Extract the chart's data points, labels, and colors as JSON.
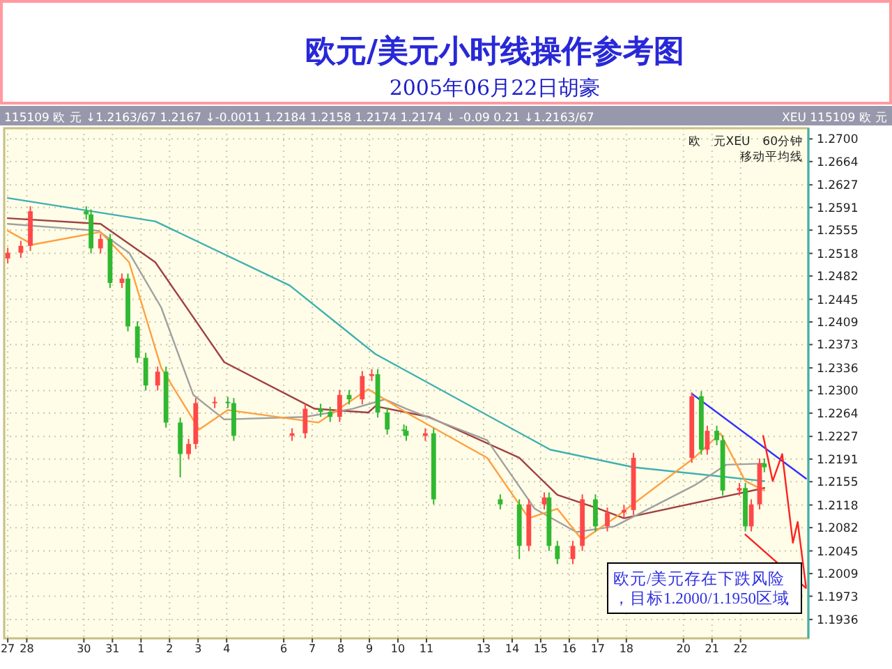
{
  "chart_data": {
    "type": "candlestick",
    "title": "欧元/美元小时线操作参考图",
    "subtitle": "2005年06月22日胡豪",
    "annotations": [
      "115109 欧 元 ↓1.2163/67 1.2167 ↓-0.0011 1.2184 1.2158 1.2174 1.2174 ↓ -0.09 0.21 ↓1.2163/67",
      "XEU 115109 欧 元",
      "欧　元XEU　60分钟",
      "移动平均线",
      "欧元/美元存在下跌风险，目标1.2000/1.1950区域"
    ],
    "x": [
      "2005-05-27T08:00",
      "2005-05-27T19:00",
      "2005-05-28T03:00",
      "2005-05-30T02:00",
      "2005-05-30T06:00",
      "2005-05-30T14:00",
      "2005-05-30T22:00",
      "2005-05-31T08:00",
      "2005-05-31T13:00",
      "2005-05-31T21:00",
      "2005-06-01T04:00",
      "2005-06-01T14:00",
      "2005-06-01T21:00",
      "2005-06-02T09:00",
      "2005-06-02T16:00",
      "2005-06-02T22:00",
      "2005-06-03T14:00",
      "2005-06-04T01:00",
      "2005-06-04T06:00",
      "2005-06-06T07:00",
      "2005-06-06T18:00",
      "2005-06-07T07:00",
      "2005-06-07T15:00",
      "2005-06-07T23:00",
      "2005-06-08T07:00",
      "2005-06-08T18:00",
      "2005-06-09T02:00",
      "2005-06-09T07:00",
      "2005-06-09T15:00",
      "2005-06-10T05:00",
      "2005-06-10T07:00",
      "2005-06-10T23:00",
      "2005-06-11T06:00",
      "2005-06-13T14:00",
      "2005-06-14T06:00",
      "2005-06-14T14:00",
      "2005-06-15T03:00",
      "2005-06-15T07:00",
      "2005-06-15T14:00",
      "2005-06-16T03:00",
      "2005-06-16T11:00",
      "2005-06-16T22:00",
      "2005-06-17T08:00",
      "2005-06-17T22:00",
      "2005-06-18T06:00",
      "2005-06-20T07:00",
      "2005-06-20T15:00",
      "2005-06-20T20:00",
      "2005-06-21T04:00",
      "2005-06-21T09:00",
      "2005-06-21T23:00",
      "2005-06-22T04:00",
      "2005-06-22T09:00",
      "2005-06-22T16:00",
      "2005-06-22T20:00"
    ],
    "ohlc": [
      [
        1.251,
        1.2527,
        1.2502,
        1.2519
      ],
      [
        1.2519,
        1.2538,
        1.2511,
        1.253
      ],
      [
        1.253,
        1.2593,
        1.2522,
        1.2585
      ],
      [
        1.2585,
        1.2593,
        1.2572,
        1.258
      ],
      [
        1.258,
        1.2588,
        1.2518,
        1.2526
      ],
      [
        1.2526,
        1.2549,
        1.2518,
        1.2541
      ],
      [
        1.2541,
        1.2549,
        1.2463,
        1.2471
      ],
      [
        1.2471,
        1.2486,
        1.2463,
        1.2478
      ],
      [
        1.2478,
        1.2486,
        1.2394,
        1.2402
      ],
      [
        1.2402,
        1.241,
        1.2344,
        1.2352
      ],
      [
        1.2352,
        1.236,
        1.23,
        1.2308
      ],
      [
        1.2308,
        1.2338,
        1.23,
        1.233
      ],
      [
        1.233,
        1.2338,
        1.2241,
        1.2249
      ],
      [
        1.2249,
        1.2257,
        1.2162,
        1.2199
      ],
      [
        1.2199,
        1.2223,
        1.2191,
        1.2215
      ],
      [
        1.2215,
        1.2288,
        1.2207,
        1.228
      ],
      [
        1.228,
        1.229,
        1.2272,
        1.2282
      ],
      [
        1.2282,
        1.229,
        1.2272,
        1.228
      ],
      [
        1.228,
        1.2288,
        1.222,
        1.2228
      ],
      [
        1.2228,
        1.224,
        1.222,
        1.2232
      ],
      [
        1.2232,
        1.2279,
        1.2224,
        1.2271
      ],
      [
        1.2271,
        1.2279,
        1.2258,
        1.2266
      ],
      [
        1.2266,
        1.2274,
        1.225,
        1.2258
      ],
      [
        1.2258,
        1.2301,
        1.225,
        1.2293
      ],
      [
        1.2293,
        1.2301,
        1.2278,
        1.2286
      ],
      [
        1.2286,
        1.2331,
        1.2278,
        1.2323
      ],
      [
        1.2323,
        1.2334,
        1.2315,
        1.2326
      ],
      [
        1.2326,
        1.2334,
        1.2257,
        1.2265
      ],
      [
        1.2265,
        1.2273,
        1.223,
        1.2238
      ],
      [
        1.2238,
        1.2246,
        1.2228,
        1.2236
      ],
      [
        1.2236,
        1.2244,
        1.222,
        1.2228
      ],
      [
        1.2228,
        1.224,
        1.222,
        1.2232
      ],
      [
        1.2232,
        1.224,
        1.2119,
        1.2127
      ],
      [
        1.2127,
        1.2135,
        1.2111,
        1.2119
      ],
      [
        1.2119,
        1.2127,
        1.2032,
        1.2053
      ],
      [
        1.2053,
        1.2127,
        1.2045,
        1.2119
      ],
      [
        1.2119,
        1.2138,
        1.2111,
        1.213
      ],
      [
        1.213,
        1.2138,
        1.2045,
        1.2053
      ],
      [
        1.2053,
        1.2061,
        1.2024,
        1.2032
      ],
      [
        1.2032,
        1.2061,
        1.2024,
        1.2053
      ],
      [
        1.2053,
        1.2135,
        1.2045,
        1.2127
      ],
      [
        1.2127,
        1.2135,
        1.2076,
        1.2084
      ],
      [
        1.2084,
        1.2114,
        1.2076,
        1.2106
      ],
      [
        1.2106,
        1.2118,
        1.2098,
        1.211
      ],
      [
        1.211,
        1.2201,
        1.2102,
        1.2193
      ],
      [
        1.2193,
        1.2297,
        1.2185,
        1.2291
      ],
      [
        1.2291,
        1.2299,
        1.2198,
        1.2206
      ],
      [
        1.2206,
        1.2244,
        1.2198,
        1.2236
      ],
      [
        1.2236,
        1.2244,
        1.2213,
        1.2221
      ],
      [
        1.2221,
        1.2229,
        1.2133,
        1.2141
      ],
      [
        1.2141,
        1.2153,
        1.2133,
        1.2145
      ],
      [
        1.2145,
        1.2153,
        1.2076,
        1.2084
      ],
      [
        1.2084,
        1.2127,
        1.2076,
        1.2119
      ],
      [
        1.2119,
        1.2192,
        1.2111,
        1.2184
      ],
      [
        1.2184,
        1.2192,
        1.217,
        1.2178
      ]
    ],
    "series": [
      {
        "type": "line",
        "color": "#40b0b0",
        "x": [
          "2005-05-27T08:00",
          "2005-06-01T12:00",
          "2005-06-06T05:00",
          "2005-06-09T05:00",
          "2005-06-15T08:00",
          "2005-06-18T06:00",
          "2005-06-22T20:00"
        ],
        "values": [
          1.2606,
          1.2569,
          1.2467,
          1.2358,
          1.2206,
          1.2178,
          1.2156
        ]
      },
      {
        "type": "line",
        "color": "#a04040",
        "x": [
          "2005-05-27T08:00",
          "2005-05-30T14:00",
          "2005-06-01T12:00",
          "2005-06-03T22:00",
          "2005-06-07T02:00",
          "2005-06-08T23:00",
          "2005-06-09T05:00",
          "2005-06-11T02:00",
          "2005-06-14T06:00",
          "2005-06-15T14:00",
          "2005-06-17T01:00",
          "2005-06-17T22:00",
          "2005-06-21T07:00",
          "2005-06-22T20:00"
        ],
        "values": [
          1.2574,
          1.2565,
          1.2504,
          1.2345,
          1.2271,
          1.2265,
          1.2275,
          1.2258,
          1.2193,
          1.2134,
          1.2112,
          1.2097,
          1.213,
          1.2145
        ]
      },
      {
        "type": "line",
        "color": "#a0a0a0",
        "x": [
          "2005-05-27T08:00",
          "2005-05-30T12:00",
          "2005-05-31T14:00",
          "2005-06-01T17:00",
          "2005-06-02T20:00",
          "2005-06-03T22:00",
          "2005-06-06T18:00",
          "2005-06-08T10:00",
          "2005-06-09T13:00",
          "2005-06-10T07:00",
          "2005-06-13T03:00",
          "2005-06-14T19:00",
          "2005-06-16T06:00",
          "2005-06-17T14:00",
          "2005-06-20T09:00",
          "2005-06-21T12:00",
          "2005-06-22T20:00"
        ],
        "values": [
          1.2565,
          1.2554,
          1.2519,
          1.2432,
          1.2293,
          1.2254,
          1.2258,
          1.2271,
          1.2286,
          1.2271,
          1.2221,
          1.2112,
          1.2075,
          1.2084,
          1.2149,
          1.2182,
          1.2184
        ]
      },
      {
        "type": "line",
        "color": "#ffa040",
        "x": [
          "2005-05-27T08:00",
          "2005-05-28T05:00",
          "2005-05-30T14:00",
          "2005-05-31T14:00",
          "2005-06-01T17:00",
          "2005-06-03T01:00",
          "2005-06-04T01:00",
          "2005-06-07T05:00",
          "2005-06-08T23:00",
          "2005-06-10T07:00",
          "2005-06-13T03:00",
          "2005-06-14T14:00",
          "2005-06-15T14:00",
          "2005-06-16T11:00",
          "2005-06-17T14:00",
          "2005-06-20T09:00",
          "2005-06-21T07:00",
          "2005-06-22T04:00",
          "2005-06-22T20:00"
        ],
        "values": [
          1.2554,
          1.2532,
          1.2552,
          1.2504,
          1.2336,
          1.2238,
          1.2269,
          1.2249,
          1.2302,
          1.2265,
          1.2193,
          1.2097,
          1.2112,
          1.2062,
          1.2097,
          1.2193,
          1.2232,
          1.2156,
          1.2141
        ]
      },
      {
        "type": "line",
        "color": "#3030ff",
        "x": [
          "2005-06-20T07:00",
          "2005-06-24T07:00"
        ],
        "values": [
          1.2295,
          1.216
        ]
      },
      {
        "type": "line",
        "color": "#ff2020",
        "x": [
          "2005-06-22T04:00",
          "2005-06-24T07:00"
        ],
        "values": [
          1.2071,
          1.1986
        ]
      },
      {
        "type": "line",
        "color": "#ff2020",
        "x": [
          "2005-06-22T19:00",
          "2005-06-23T03:00",
          "2005-06-23T11:00",
          "2005-06-23T20:00",
          "2005-06-24T00:00",
          "2005-06-24T07:00"
        ],
        "values": [
          1.2228,
          1.2156,
          1.2199,
          1.2058,
          1.2091,
          1.1988
        ]
      }
    ],
    "xlim": [
      "2005-05-27T05:00",
      "2005-06-24T09:00"
    ],
    "ylim": [
      1.1906,
      1.2717
    ],
    "xticks": [
      {
        "value": "2005-05-27T08:00",
        "label": "27"
      },
      {
        "value": "2005-05-28",
        "label": "28"
      },
      {
        "value": "2005-05-30",
        "label": "30"
      },
      {
        "value": "2005-05-31",
        "label": "31"
      },
      {
        "value": "2005-06-01",
        "label": "1"
      },
      {
        "value": "2005-06-02",
        "label": "2"
      },
      {
        "value": "2005-06-03",
        "label": "3"
      },
      {
        "value": "2005-06-04",
        "label": "4"
      },
      {
        "value": "2005-06-06",
        "label": "6"
      },
      {
        "value": "2005-06-07",
        "label": "7"
      },
      {
        "value": "2005-06-08",
        "label": "8"
      },
      {
        "value": "2005-06-09",
        "label": "9"
      },
      {
        "value": "2005-06-10",
        "label": "10"
      },
      {
        "value": "2005-06-11",
        "label": "11"
      },
      {
        "value": "2005-06-13",
        "label": "13"
      },
      {
        "value": "2005-06-14",
        "label": "14"
      },
      {
        "value": "2005-06-15",
        "label": "15"
      },
      {
        "value": "2005-06-16",
        "label": "16"
      },
      {
        "value": "2005-06-17",
        "label": "17"
      },
      {
        "value": "2005-06-18",
        "label": "18"
      },
      {
        "value": "2005-06-20",
        "label": "20"
      },
      {
        "value": "2005-06-21",
        "label": "21"
      },
      {
        "value": "2005-06-22",
        "label": "22"
      }
    ],
    "yticks": [
      {
        "value": 1.27,
        "label": "1.2700"
      },
      1.2664,
      1.2627,
      1.2591,
      1.2555,
      1.2518,
      1.2482,
      1.2445,
      1.2409,
      1.2373,
      1.2336,
      {
        "value": 1.23,
        "label": "1.2300"
      },
      1.2264,
      1.2227,
      1.2191,
      1.2155,
      1.2118,
      1.2082,
      1.2045,
      1.2009,
      1.1973,
      1.1936
    ],
    "grid": true
  }
}
